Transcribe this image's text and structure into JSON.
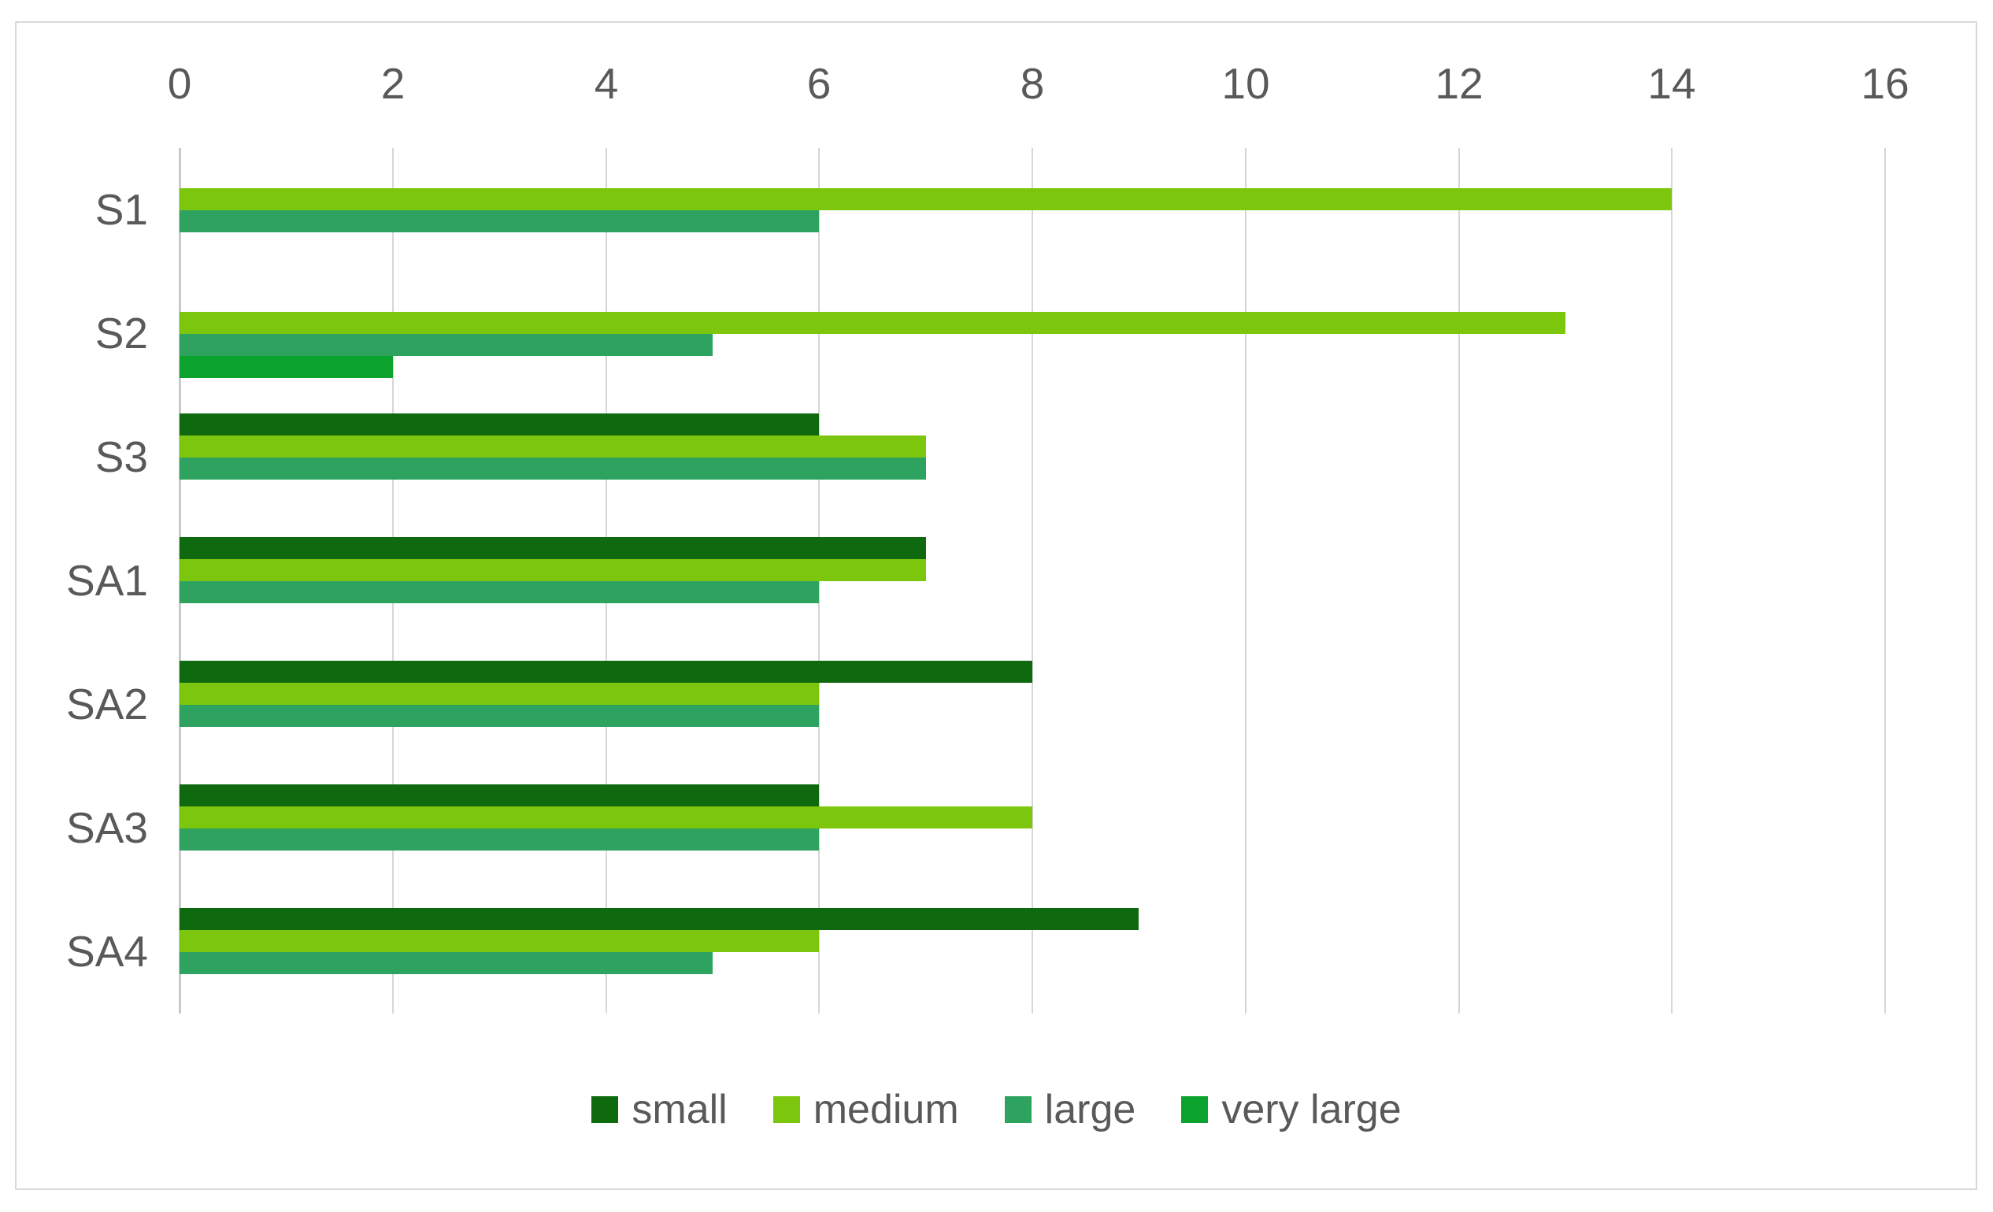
{
  "chart_data": {
    "type": "bar",
    "orientation": "horizontal",
    "title": "",
    "xlabel": "",
    "ylabel": "",
    "categories": [
      "S1",
      "S2",
      "S3",
      "SA1",
      "SA2",
      "SA3",
      "SA4"
    ],
    "series": [
      {
        "name": "small",
        "color": "#0f6a0f",
        "values": [
          null,
          null,
          6,
          7,
          8,
          6,
          9
        ]
      },
      {
        "name": "medium",
        "color": "#7cc70e",
        "values": [
          14,
          13,
          7,
          7,
          6,
          8,
          6
        ]
      },
      {
        "name": "large",
        "color": "#2ea360",
        "values": [
          6,
          5,
          7,
          6,
          6,
          6,
          5
        ]
      },
      {
        "name": "very large",
        "color": "#0ba32d",
        "values": [
          null,
          2,
          null,
          null,
          null,
          null,
          null
        ]
      }
    ],
    "xlim": [
      0,
      16
    ],
    "x_ticks": [
      0,
      2,
      4,
      6,
      8,
      10,
      12,
      14,
      16
    ],
    "grid": "vertical",
    "legend_position": "bottom-center",
    "legend_labels": [
      "small",
      "medium",
      "large",
      "very large"
    ],
    "colors": {
      "background": "#ffffff",
      "frame_border": "#d9d9d9",
      "gridline": "#d6d6d6",
      "axis_line": "#c9c9c9",
      "text": "#595959"
    }
  }
}
